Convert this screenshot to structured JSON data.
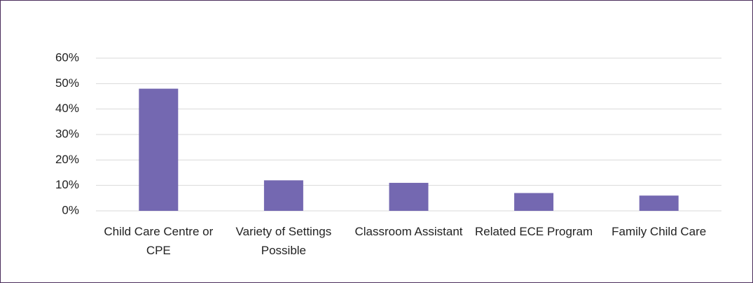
{
  "chart_data": {
    "type": "bar",
    "categories": [
      "Child Care Centre or CPE",
      "Variety of Settings Possible",
      "Classroom Assistant",
      "Related ECE Program",
      "Family Child Care"
    ],
    "values": [
      48,
      12,
      11,
      7,
      6
    ],
    "color": "#7468b1",
    "ylim": [
      0,
      60
    ],
    "yticks": [
      {
        "value": 0,
        "label": "0%"
      },
      {
        "value": 10,
        "label": "10%"
      },
      {
        "value": 20,
        "label": "20%"
      },
      {
        "value": 30,
        "label": "30%"
      },
      {
        "value": 40,
        "label": "40%"
      },
      {
        "value": 50,
        "label": "50%"
      },
      {
        "value": 60,
        "label": "60%"
      }
    ],
    "grid": true
  }
}
